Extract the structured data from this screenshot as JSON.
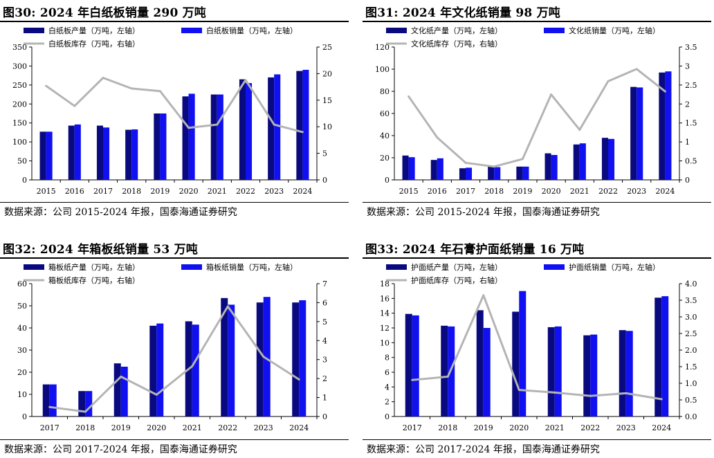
{
  "colors": {
    "production": "#0a0a80",
    "sales": "#1010f0",
    "inventory": "#b4b4b4"
  },
  "charts": [
    {
      "id": "fig30",
      "title": "图30:  2024 年白纸板销量 290 万吨",
      "source": "数据来源：公司 2015-2024 年报，国泰海通证券研究",
      "legend": {
        "production": "白纸板产量（万吨，左轴）",
        "sales": "白纸板销量（万吨，左轴）",
        "inventory": "白纸板库存（万吨，右轴）"
      },
      "chart_data": {
        "type": "bar",
        "categories": [
          "2015",
          "2016",
          "2017",
          "2018",
          "2019",
          "2020",
          "2021",
          "2022",
          "2023",
          "2024"
        ],
        "series": [
          {
            "name": "白纸板产量（万吨，左轴）",
            "kind": "bar",
            "axis": "left",
            "values": [
              127,
              143,
              143,
              132,
              175,
              220,
              225,
              265,
              270,
              287
            ]
          },
          {
            "name": "白纸板销量（万吨，左轴）",
            "kind": "bar",
            "axis": "left",
            "values": [
              127,
              146,
              138,
              133,
              175,
              227,
              225,
              255,
              278,
              290
            ]
          },
          {
            "name": "白纸板库存（万吨，右轴）",
            "kind": "line",
            "axis": "right",
            "values": [
              17.7,
              13.9,
              19.2,
              17.2,
              16.7,
              9.8,
              10.4,
              18.8,
              10.4,
              9.0
            ]
          }
        ],
        "ylim": [
          0,
          350
        ],
        "yticks": [
          0,
          50,
          100,
          150,
          200,
          250,
          300,
          350
        ],
        "y2lim": [
          0,
          25
        ],
        "y2ticks": [
          0,
          5,
          10,
          15,
          20,
          25
        ]
      }
    },
    {
      "id": "fig31",
      "title": "图31:  2024 年文化纸销量 98 万吨",
      "source": "数据来源：公司 2015-2024 年报，国泰海通证券研究",
      "legend": {
        "production": "文化纸产量（万吨，左轴）",
        "sales": "文化纸销量（万吨，左轴）",
        "inventory": "文化纸库存（万吨，右轴）"
      },
      "chart_data": {
        "type": "bar",
        "categories": [
          "2015",
          "2016",
          "2017",
          "2018",
          "2019",
          "2020",
          "2021",
          "2022",
          "2023",
          "2024"
        ],
        "series": [
          {
            "name": "文化纸产量（万吨，左轴）",
            "kind": "bar",
            "axis": "left",
            "values": [
              22,
              18,
              10.5,
              12,
              12,
              24,
              32,
              38,
              84,
              97
            ]
          },
          {
            "name": "文化纸销量（万吨，左轴）",
            "kind": "bar",
            "axis": "left",
            "values": [
              20.5,
              19.5,
              11,
              11.5,
              12,
              22.5,
              33,
              37,
              83.5,
              98
            ]
          },
          {
            "name": "文化纸库存（万吨，右轴）",
            "kind": "line",
            "axis": "right",
            "values": [
              2.2,
              1.12,
              0.45,
              0.35,
              0.55,
              2.25,
              1.32,
              2.6,
              2.92,
              2.33
            ]
          }
        ],
        "ylim": [
          0,
          120
        ],
        "yticks": [
          0,
          20,
          40,
          60,
          80,
          100,
          120
        ],
        "y2lim": [
          0,
          3.5
        ],
        "y2ticks": [
          0,
          0.5,
          1,
          1.5,
          2,
          2.5,
          3,
          3.5
        ]
      }
    },
    {
      "id": "fig32",
      "title": "图32:  2024 年箱板纸销量 53 万吨",
      "source": "数据来源：公司 2017-2024 年报，国泰海通证券研究",
      "legend": {
        "production": "箱板纸产量（万吨，左轴）",
        "sales": "箱板纸销量（万吨，左轴）",
        "inventory": "箱板纸库存（万吨，右轴）"
      },
      "chart_data": {
        "type": "bar",
        "categories": [
          "2017",
          "2018",
          "2019",
          "2020",
          "2021",
          "2022",
          "2023",
          "2024"
        ],
        "series": [
          {
            "name": "箱板纸产量（万吨，左轴）",
            "kind": "bar",
            "axis": "left",
            "values": [
              14.5,
              11.5,
              24,
              41,
              43,
              53.5,
              51.5,
              51.5
            ]
          },
          {
            "name": "箱板纸销量（万吨，左轴）",
            "kind": "bar",
            "axis": "left",
            "values": [
              14.5,
              11.5,
              22.5,
              42,
              41.5,
              50.5,
              54,
              52.5
            ]
          },
          {
            "name": "箱板纸库存（万吨，右轴）",
            "kind": "line",
            "axis": "right",
            "values": [
              0.5,
              0.25,
              2.1,
              1.15,
              2.65,
              5.8,
              3.15,
              1.95
            ]
          }
        ],
        "ylim": [
          0,
          60
        ],
        "yticks": [
          0,
          10,
          20,
          30,
          40,
          50,
          60
        ],
        "y2lim": [
          0,
          7
        ],
        "y2ticks": [
          0,
          1,
          2,
          3,
          4,
          5,
          6,
          7
        ]
      }
    },
    {
      "id": "fig33",
      "title": "图33:  2024 年石膏护面纸销量 16 万吨",
      "source": "数据来源：公司 2017-2024 年报，国泰海通证券研究",
      "legend": {
        "production": "护面纸产量（万吨，左轴）",
        "sales": "护面纸销量（万吨，左轴）",
        "inventory": "护面纸库存（万吨，右轴）"
      },
      "chart_data": {
        "type": "bar",
        "categories": [
          "2017",
          "2018",
          "2019",
          "2020",
          "2021",
          "2022",
          "2023",
          "2024"
        ],
        "series": [
          {
            "name": "护面纸产量（万吨，左轴）",
            "kind": "bar",
            "axis": "left",
            "values": [
              13.9,
              12.3,
              14.4,
              14.2,
              12.1,
              11,
              11.7,
              16.1
            ]
          },
          {
            "name": "护面纸销量（万吨，左轴）",
            "kind": "bar",
            "axis": "left",
            "values": [
              13.7,
              12.2,
              12,
              17,
              12.2,
              11.1,
              11.6,
              16.3
            ]
          },
          {
            "name": "护面纸库存（万吨，右轴）",
            "kind": "line",
            "axis": "right",
            "values": [
              1.1,
              1.2,
              3.65,
              0.8,
              0.72,
              0.62,
              0.7,
              0.52
            ]
          }
        ],
        "ylim": [
          0,
          18
        ],
        "yticks": [
          0,
          2,
          4,
          6,
          8,
          10,
          12,
          14,
          16,
          18
        ],
        "y2lim": [
          0,
          4
        ],
        "y2ticks": [
          "0.0",
          "0.5",
          "1.0",
          "1.5",
          "2.0",
          "2.5",
          "3.0",
          "3.5",
          "4.0"
        ]
      }
    }
  ]
}
